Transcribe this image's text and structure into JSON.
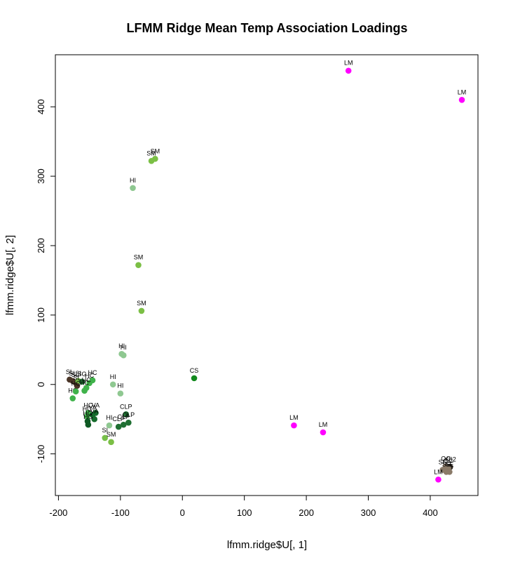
{
  "chart_data": {
    "type": "scatter",
    "title": "LFMM Ridge Mean Temp Association Loadings",
    "xlabel": "lfmm.ridge$U[, 1]",
    "ylabel": "lfmm.ridge$U[, 2]",
    "xlim": [
      -205,
      477
    ],
    "ylim": [
      -160,
      475
    ],
    "xticks": [
      -200,
      -100,
      0,
      100,
      200,
      300,
      400
    ],
    "yticks": [
      -100,
      0,
      100,
      200,
      300,
      400
    ],
    "grid": false,
    "legend": "none",
    "group_colors": {
      "LM": "#ff00ff",
      "SM": "#7bbf45",
      "HI": "#8fc891",
      "CS": "#138a1e",
      "SL": "#4a3527",
      "HC": "#3fb24a",
      "VA": "#156b2c",
      "HG": "#0f5a24",
      "CLP": "#1f6f32",
      "SG": "#1f6f32",
      "OC": "#8a7a68",
      "SE": "#8a7a68",
      "YS2": "#2b231c",
      "SI": "#77bf4a"
    },
    "points": [
      {
        "label": "LM",
        "x": 268,
        "y": 452
      },
      {
        "label": "LM",
        "x": 451,
        "y": 410
      },
      {
        "label": "SM",
        "x": -44,
        "y": 325
      },
      {
        "label": "SM",
        "x": -50,
        "y": 322
      },
      {
        "label": "HI",
        "x": -80,
        "y": 283
      },
      {
        "label": "SM",
        "x": -71,
        "y": 172
      },
      {
        "label": "SM",
        "x": -66,
        "y": 106
      },
      {
        "label": "HI",
        "x": -98,
        "y": 44
      },
      {
        "label": "HI",
        "x": -95,
        "y": 42
      },
      {
        "label": "CS",
        "x": 19,
        "y": 9
      },
      {
        "label": "HI",
        "x": -112,
        "y": 0
      },
      {
        "label": "HI",
        "x": -100,
        "y": -13
      },
      {
        "label": "SL",
        "x": -182,
        "y": 7
      },
      {
        "label": "SL",
        "x": -177,
        "y": 5
      },
      {
        "label": "SL",
        "x": -173,
        "y": 3
      },
      {
        "label": "SI",
        "x": -168,
        "y": 5
      },
      {
        "label": "SG",
        "x": -162,
        "y": 4
      },
      {
        "label": "HC",
        "x": -145,
        "y": 6
      },
      {
        "label": "HC",
        "x": -150,
        "y": 2
      },
      {
        "label": "HC",
        "x": -155,
        "y": -5
      },
      {
        "label": "HC",
        "x": -158,
        "y": -9
      },
      {
        "label": "SL",
        "x": -170,
        "y": -2
      },
      {
        "label": "HC",
        "x": -177,
        "y": -20
      },
      {
        "label": "HC",
        "x": -172,
        "y": -10
      },
      {
        "label": "HC",
        "x": -152,
        "y": -41
      },
      {
        "label": "VA",
        "x": -140,
        "y": -41
      },
      {
        "label": "VA",
        "x": -145,
        "y": -44
      },
      {
        "label": "HC",
        "x": -154,
        "y": -46
      },
      {
        "label": "HG",
        "x": -153,
        "y": -53
      },
      {
        "label": "VA",
        "x": -142,
        "y": -50
      },
      {
        "label": "HG",
        "x": -152,
        "y": -58
      },
      {
        "label": "CLP",
        "x": -91,
        "y": -43
      },
      {
        "label": "CLP",
        "x": -87,
        "y": -55
      },
      {
        "label": "CLP",
        "x": -95,
        "y": -58
      },
      {
        "label": "CLP",
        "x": -103,
        "y": -61
      },
      {
        "label": "HI",
        "x": -118,
        "y": -59
      },
      {
        "label": "SI",
        "x": -125,
        "y": -77
      },
      {
        "label": "SM",
        "x": -115,
        "y": -83
      },
      {
        "label": "LM",
        "x": 180,
        "y": -59
      },
      {
        "label": "LM",
        "x": 227,
        "y": -69
      },
      {
        "label": "OC",
        "x": 425,
        "y": -118
      },
      {
        "label": "YS2",
        "x": 432,
        "y": -119
      },
      {
        "label": "OC",
        "x": 429,
        "y": -121
      },
      {
        "label": "SE",
        "x": 420,
        "y": -123
      },
      {
        "label": "SE",
        "x": 426,
        "y": -126
      },
      {
        "label": "SE",
        "x": 431,
        "y": -126
      },
      {
        "label": "LM",
        "x": 413,
        "y": -137
      }
    ]
  }
}
